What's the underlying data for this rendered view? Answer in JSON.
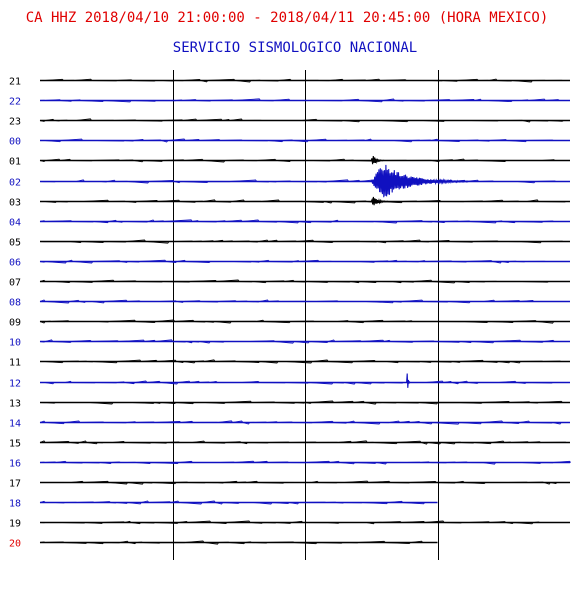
{
  "header": {
    "title": "CA HHZ 2018/04/10 21:00:00 - 2018/04/11 20:45:00 (HORA MEXICO)",
    "subtitle": "SERVICIO SISMOLOGICO NACIONAL"
  },
  "colors": {
    "title": "#e00000",
    "subtitle": "#1010c0",
    "trace_black": "#000000",
    "trace_blue": "#1010c0",
    "label_red": "#e00000"
  },
  "chart_data": {
    "type": "line",
    "title": "CA HHZ 2018/04/10 21:00:00 - 2018/04/11 20:45:00 (HORA MEXICO)",
    "subtitle": "SERVICIO SISMOLOGICO NACIONAL",
    "minutes_per_row": 60,
    "vertical_time_markers_min": [
      15,
      30,
      45
    ],
    "rows": [
      {
        "label": "21",
        "color": "black",
        "end_min": 60
      },
      {
        "label": "22",
        "color": "blue",
        "end_min": 60
      },
      {
        "label": "23",
        "color": "black",
        "end_min": 60
      },
      {
        "label": "00",
        "color": "blue",
        "end_min": 60
      },
      {
        "label": "01",
        "color": "black",
        "end_min": 60
      },
      {
        "label": "02",
        "color": "blue",
        "end_min": 60
      },
      {
        "label": "03",
        "color": "black",
        "end_min": 60
      },
      {
        "label": "04",
        "color": "blue",
        "end_min": 60
      },
      {
        "label": "05",
        "color": "black",
        "end_min": 60
      },
      {
        "label": "06",
        "color": "blue",
        "end_min": 60
      },
      {
        "label": "07",
        "color": "black",
        "end_min": 60
      },
      {
        "label": "08",
        "color": "blue",
        "end_min": 60
      },
      {
        "label": "09",
        "color": "black",
        "end_min": 60
      },
      {
        "label": "10",
        "color": "blue",
        "end_min": 60
      },
      {
        "label": "11",
        "color": "black",
        "end_min": 60
      },
      {
        "label": "12",
        "color": "blue",
        "end_min": 60
      },
      {
        "label": "13",
        "color": "black",
        "end_min": 60
      },
      {
        "label": "14",
        "color": "blue",
        "end_min": 60
      },
      {
        "label": "15",
        "color": "black",
        "end_min": 60
      },
      {
        "label": "16",
        "color": "blue",
        "end_min": 60
      },
      {
        "label": "17",
        "color": "black",
        "end_min": 60
      },
      {
        "label": "18",
        "color": "blue",
        "end_min": 45
      },
      {
        "label": "19",
        "color": "black",
        "end_min": 60
      },
      {
        "label": "20",
        "color": "black",
        "end_min": 45,
        "label_color": "red"
      }
    ],
    "events": [
      {
        "row": "01",
        "start_min": 37.5,
        "duration_min": 1.5,
        "amplitude": 0.3
      },
      {
        "row": "02",
        "start_min": 37.5,
        "duration_min": 11,
        "amplitude": 1.0
      },
      {
        "row": "03",
        "start_min": 37.5,
        "duration_min": 2,
        "amplitude": 0.3
      },
      {
        "row": "12",
        "start_min": 41.5,
        "duration_min": 0.4,
        "amplitude": 0.75
      }
    ],
    "ylabel": "",
    "xlabel": ""
  }
}
